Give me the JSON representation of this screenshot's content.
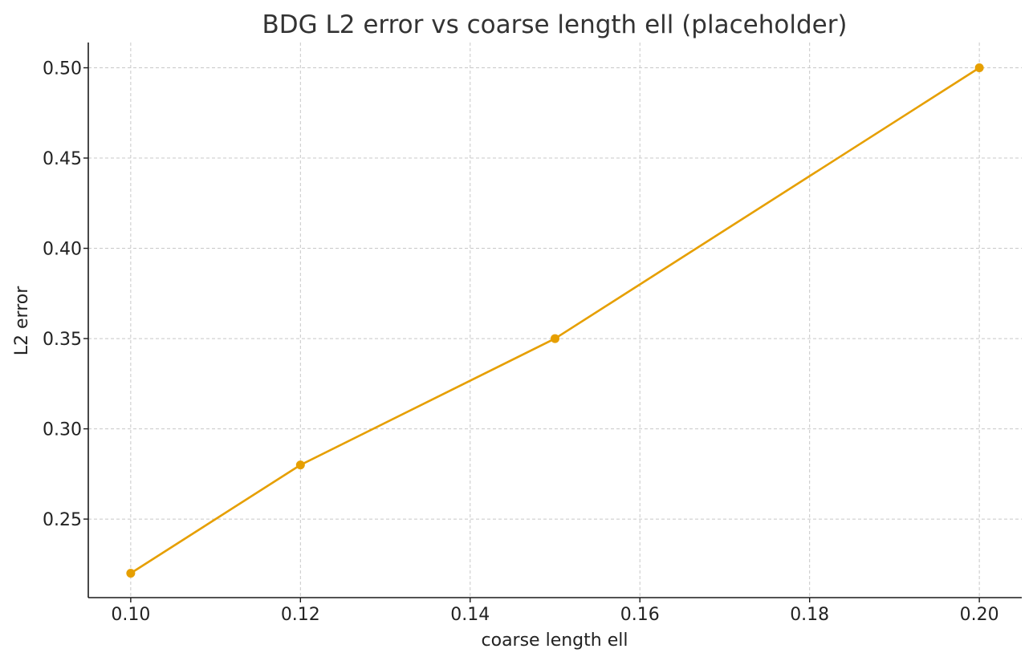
{
  "chart_data": {
    "type": "line",
    "title": "BDG L2 error vs coarse length ell (placeholder)",
    "xlabel": "coarse length ell",
    "ylabel": "L2 error",
    "x": [
      0.1,
      0.12,
      0.15,
      0.2
    ],
    "series": [
      {
        "values": [
          0.22,
          0.28,
          0.35,
          0.5
        ],
        "color": "#E69F00",
        "marker": "circle"
      }
    ],
    "xlim": [
      0.095,
      0.205
    ],
    "ylim": [
      0.2065,
      0.514
    ],
    "xticks": [
      0.1,
      0.12,
      0.14,
      0.16,
      0.18,
      0.2
    ],
    "xtick_labels": [
      "0.10",
      "0.12",
      "0.14",
      "0.16",
      "0.18",
      "0.20"
    ],
    "yticks": [
      0.25,
      0.3,
      0.35,
      0.4,
      0.45,
      0.5
    ],
    "ytick_labels": [
      "0.25",
      "0.30",
      "0.35",
      "0.40",
      "0.45",
      "0.50"
    ],
    "grid": true,
    "grid_color": "#c8c8c8",
    "axis_color": "#1a1a1a",
    "text_color": "#222222"
  }
}
